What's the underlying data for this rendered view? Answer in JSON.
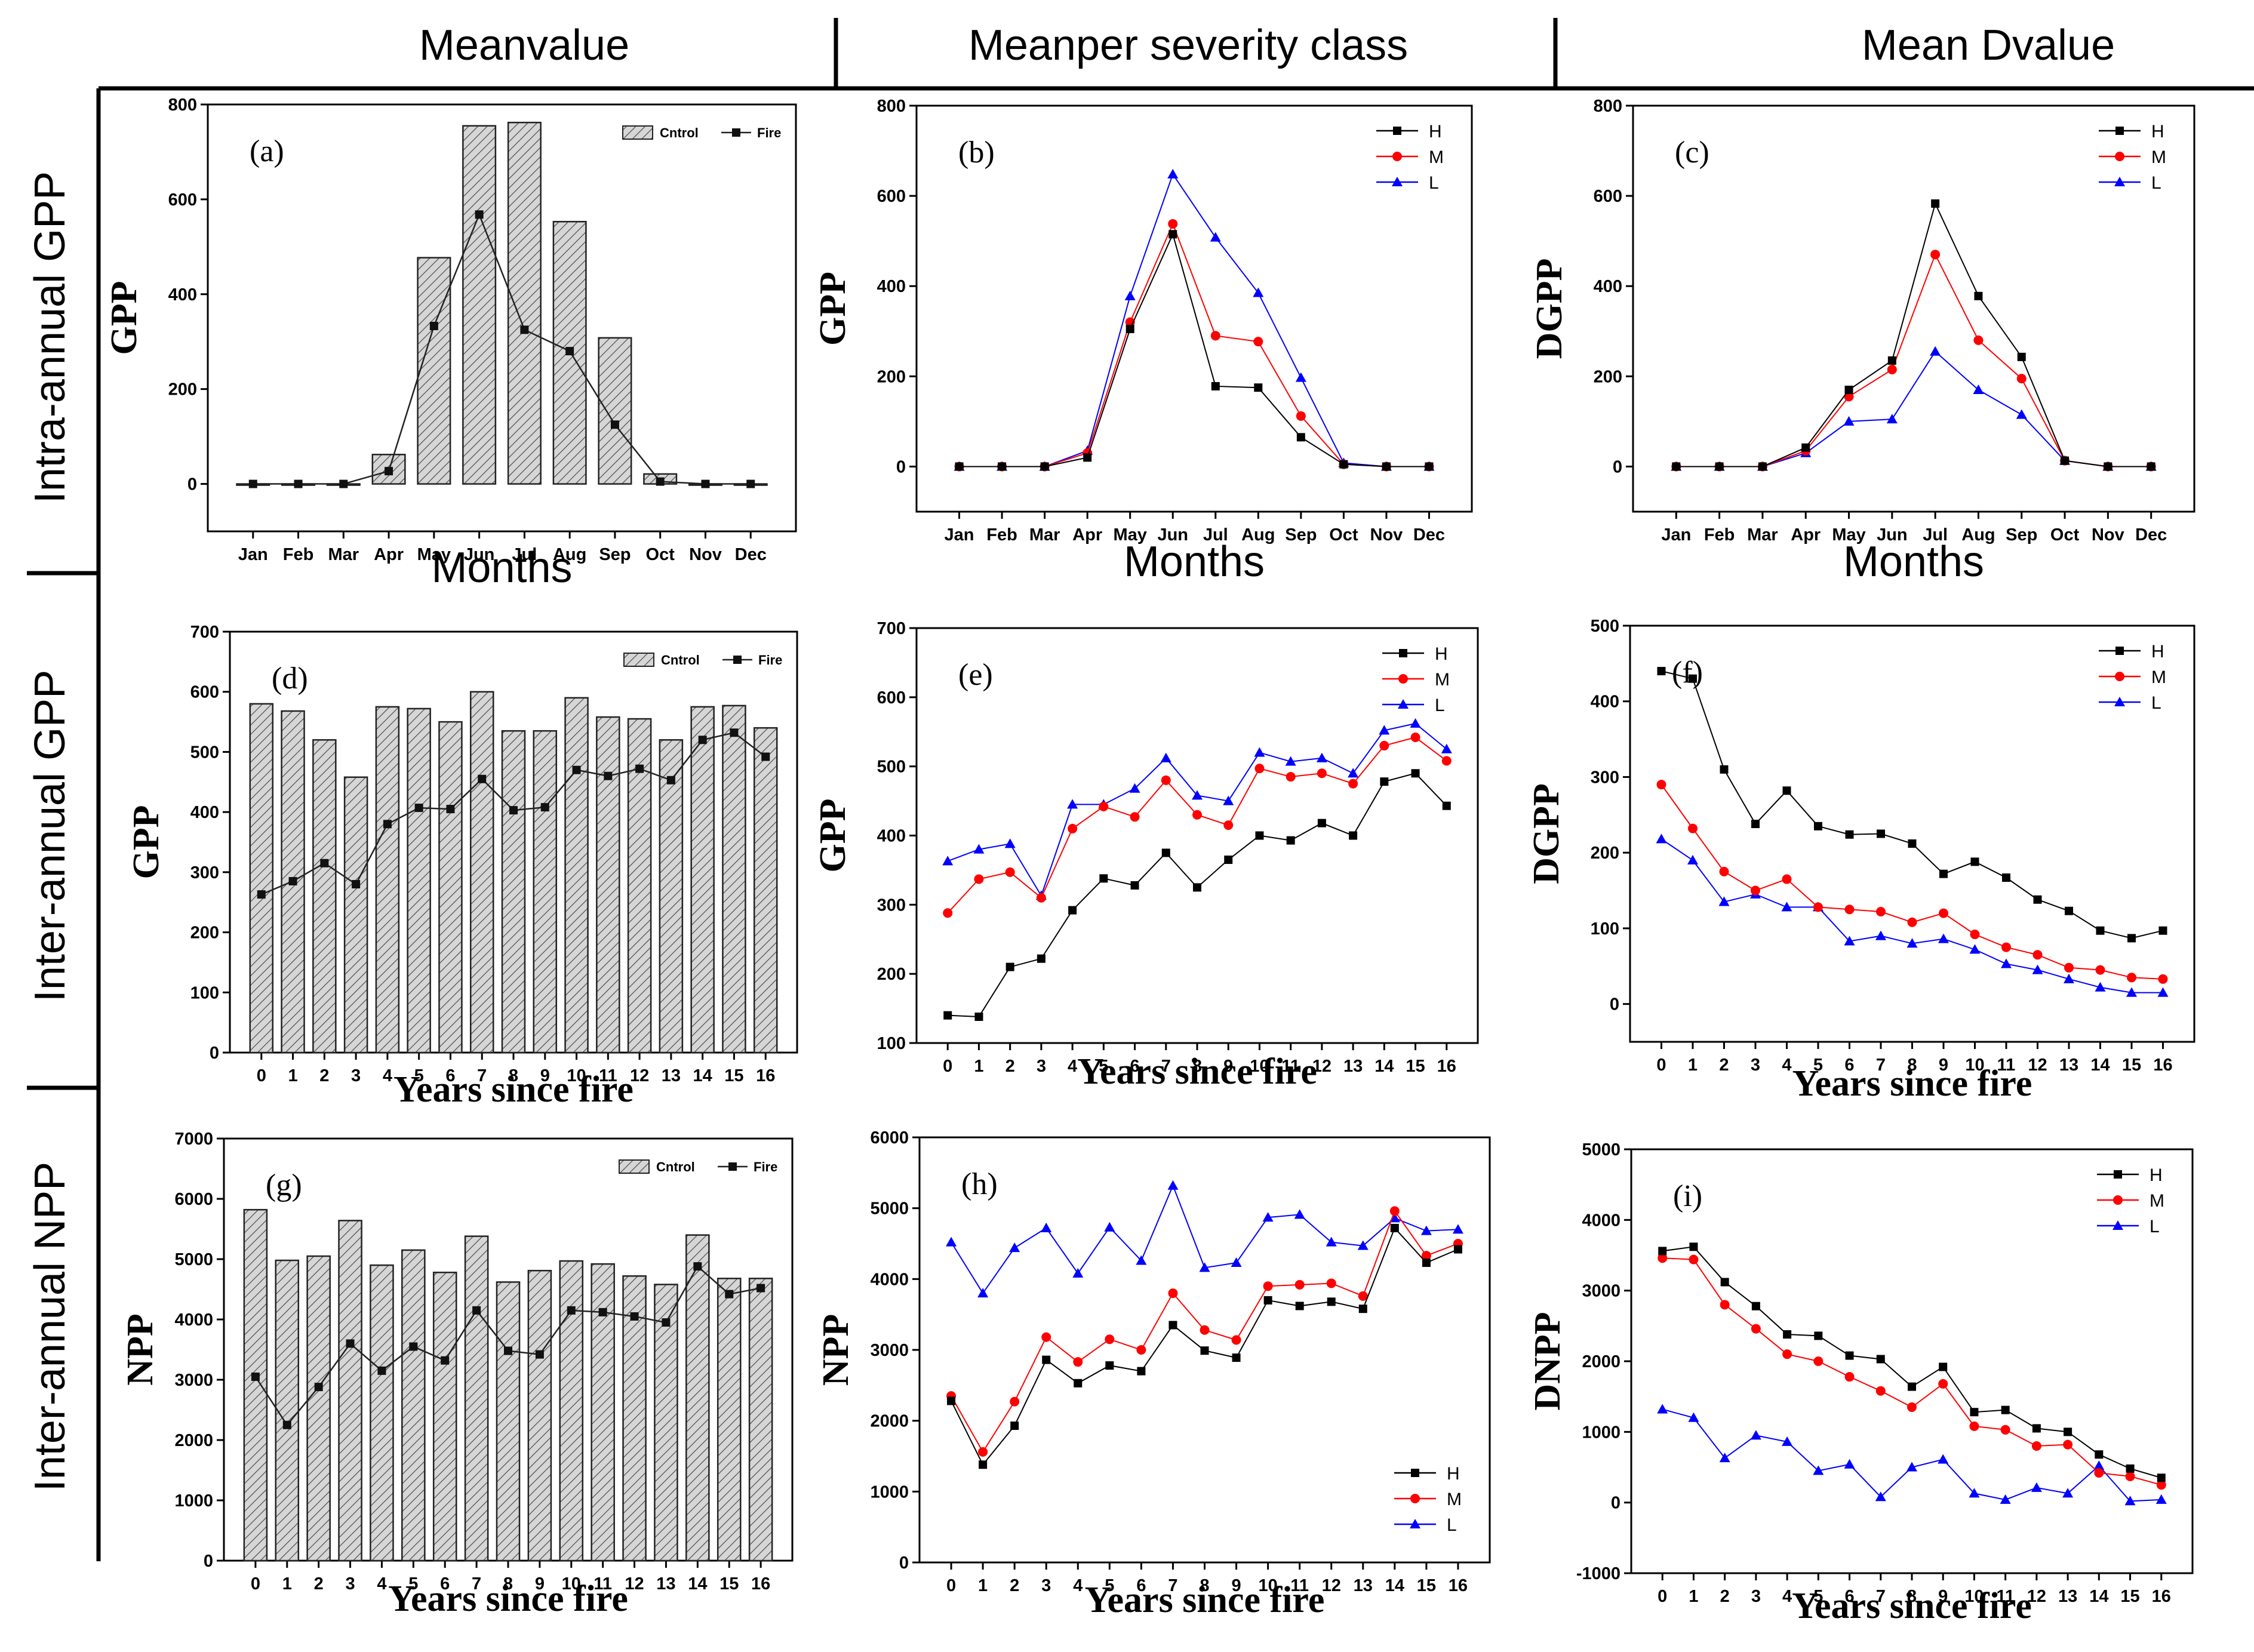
{
  "columns": [
    "Meanvalue",
    "Meanper severity class",
    "Mean Dvalue"
  ],
  "rows": [
    "Intra-annual GPP",
    "Inter-annual GPP",
    "Inter-annual NPP"
  ],
  "colors": {
    "H": "#000000",
    "M": "#ff0000",
    "L": "#0000ff",
    "bar_fill": "#d2d2d2",
    "axis": "#000000"
  },
  "chart_data": [
    {
      "id": "a",
      "type": "bar",
      "panel_label": "(a)",
      "ylabel": "GPP",
      "xlabel": "Months",
      "ylim": [
        -100,
        800
      ],
      "yticks": [
        0,
        200,
        400,
        600,
        800
      ],
      "categories": [
        "Jan",
        "Feb",
        "Mar",
        "Apr",
        "May",
        "Jun",
        "Jul",
        "Aug",
        "Sep",
        "Oct",
        "Nov",
        "Dec"
      ],
      "legend": [
        "Cntrol",
        "Fire"
      ],
      "series": [
        {
          "name": "Cntrol",
          "kind": "bar",
          "values": [
            0,
            0,
            0,
            62,
            477,
            755,
            762,
            553,
            308,
            21,
            0,
            0
          ]
        },
        {
          "name": "Fire",
          "kind": "line",
          "values": [
            0,
            0,
            0,
            27,
            333,
            568,
            325,
            280,
            125,
            5,
            0,
            0
          ]
        }
      ]
    },
    {
      "id": "b",
      "type": "line",
      "panel_label": "(b)",
      "ylabel": "GPP",
      "xlabel": "Months",
      "ylim": [
        -100,
        800
      ],
      "yticks": [
        0,
        200,
        400,
        600,
        800
      ],
      "categories": [
        "Jan",
        "Feb",
        "Mar",
        "Apr",
        "May",
        "Jun",
        "Jul",
        "Aug",
        "Sep",
        "Oct",
        "Nov",
        "Dec"
      ],
      "legend": [
        "H",
        "M",
        "L"
      ],
      "series": [
        {
          "name": "H",
          "values": [
            0,
            0,
            0,
            20,
            305,
            515,
            178,
            175,
            65,
            5,
            0,
            0
          ]
        },
        {
          "name": "M",
          "values": [
            0,
            0,
            0,
            30,
            320,
            538,
            290,
            277,
            112,
            5,
            0,
            0
          ]
        },
        {
          "name": "L",
          "values": [
            0,
            0,
            0,
            35,
            378,
            648,
            508,
            385,
            197,
            8,
            0,
            0
          ]
        }
      ]
    },
    {
      "id": "c",
      "type": "line",
      "panel_label": "(c)",
      "ylabel": "DGPP",
      "xlabel": "Months",
      "ylim": [
        -100,
        800
      ],
      "yticks": [
        0,
        200,
        400,
        600,
        800
      ],
      "categories": [
        "Jan",
        "Feb",
        "Mar",
        "Apr",
        "May",
        "Jun",
        "Jul",
        "Aug",
        "Sep",
        "Oct",
        "Nov",
        "Dec"
      ],
      "legend": [
        "H",
        "M",
        "L"
      ],
      "series": [
        {
          "name": "H",
          "values": [
            0,
            0,
            0,
            42,
            170,
            235,
            583,
            378,
            243,
            13,
            0,
            0
          ]
        },
        {
          "name": "M",
          "values": [
            0,
            0,
            0,
            35,
            155,
            215,
            470,
            280,
            195,
            13,
            0,
            0
          ]
        },
        {
          "name": "L",
          "values": [
            0,
            0,
            0,
            30,
            100,
            105,
            255,
            170,
            115,
            13,
            0,
            0
          ]
        }
      ]
    },
    {
      "id": "d",
      "type": "bar",
      "panel_label": "(d)",
      "ylabel": "GPP",
      "xlabel": "Years since fire",
      "ylim": [
        0,
        700
      ],
      "yticks": [
        0,
        100,
        200,
        300,
        400,
        500,
        600,
        700
      ],
      "categories": [
        "0",
        "1",
        "2",
        "3",
        "4",
        "5",
        "6",
        "7",
        "8",
        "9",
        "10",
        "11",
        "12",
        "13",
        "14",
        "15",
        "16"
      ],
      "legend": [
        "Cntrol",
        "Fire"
      ],
      "series": [
        {
          "name": "Cntrol",
          "kind": "bar",
          "values": [
            580,
            568,
            520,
            458,
            575,
            572,
            550,
            600,
            535,
            535,
            590,
            558,
            555,
            520,
            575,
            577,
            540
          ]
        },
        {
          "name": "Fire",
          "kind": "line",
          "values": [
            263,
            285,
            315,
            280,
            380,
            407,
            405,
            455,
            403,
            408,
            470,
            460,
            472,
            453,
            520,
            532,
            492
          ]
        }
      ]
    },
    {
      "id": "e",
      "type": "line",
      "panel_label": "(e)",
      "ylabel": "GPP",
      "xlabel": "Years since fire",
      "ylim": [
        100,
        700
      ],
      "yticks": [
        100,
        200,
        300,
        400,
        500,
        600,
        700
      ],
      "categories": [
        "0",
        "1",
        "2",
        "3",
        "4",
        "5",
        "6",
        "7",
        "8",
        "9",
        "10",
        "11",
        "12",
        "13",
        "14",
        "15",
        "16"
      ],
      "legend": [
        "H",
        "M",
        "L"
      ],
      "series": [
        {
          "name": "H",
          "values": [
            140,
            138,
            210,
            222,
            292,
            338,
            328,
            375,
            325,
            365,
            400,
            393,
            418,
            400,
            478,
            490,
            443
          ]
        },
        {
          "name": "M",
          "values": [
            288,
            337,
            347,
            310,
            410,
            442,
            427,
            480,
            430,
            415,
            497,
            485,
            490,
            475,
            530,
            542,
            508
          ]
        },
        {
          "name": "L",
          "values": [
            363,
            380,
            388,
            313,
            445,
            445,
            468,
            512,
            458,
            450,
            520,
            507,
            512,
            490,
            552,
            562,
            525
          ]
        }
      ]
    },
    {
      "id": "f",
      "type": "line",
      "panel_label": "(f)",
      "ylabel": "DGPP",
      "xlabel": "Years since fire",
      "ylim": [
        -50,
        500
      ],
      "yticks": [
        0,
        100,
        200,
        300,
        400,
        500
      ],
      "categories": [
        "0",
        "1",
        "2",
        "3",
        "4",
        "5",
        "6",
        "7",
        "8",
        "9",
        "10",
        "11",
        "12",
        "13",
        "14",
        "15",
        "16"
      ],
      "legend": [
        "H",
        "M",
        "L"
      ],
      "series": [
        {
          "name": "H",
          "values": [
            440,
            430,
            310,
            238,
            282,
            235,
            224,
            225,
            212,
            172,
            188,
            167,
            138,
            123,
            97,
            87,
            97
          ]
        },
        {
          "name": "M",
          "values": [
            290,
            232,
            175,
            150,
            165,
            128,
            125,
            122,
            108,
            120,
            92,
            75,
            65,
            48,
            45,
            35,
            33
          ]
        },
        {
          "name": "L",
          "values": [
            218,
            190,
            135,
            145,
            128,
            128,
            83,
            90,
            80,
            86,
            72,
            53,
            45,
            33,
            22,
            15,
            15
          ]
        }
      ]
    },
    {
      "id": "g",
      "type": "bar",
      "panel_label": "(g)",
      "ylabel": "NPP",
      "xlabel": "Years since fire",
      "ylim": [
        0,
        7000
      ],
      "yticks": [
        0,
        1000,
        2000,
        3000,
        4000,
        5000,
        6000,
        7000
      ],
      "categories": [
        "0",
        "1",
        "2",
        "3",
        "4",
        "5",
        "6",
        "7",
        "8",
        "9",
        "10",
        "11",
        "12",
        "13",
        "14",
        "15",
        "16"
      ],
      "legend": [
        "Cntrol",
        "Fire"
      ],
      "series": [
        {
          "name": "Cntrol",
          "kind": "bar",
          "values": [
            5820,
            4980,
            5050,
            5640,
            4900,
            5150,
            4780,
            5380,
            4620,
            4810,
            4970,
            4920,
            4720,
            4580,
            5400,
            4680,
            4680
          ]
        },
        {
          "name": "Fire",
          "kind": "line",
          "values": [
            3050,
            2250,
            2880,
            3600,
            3150,
            3550,
            3320,
            4150,
            3480,
            3420,
            4150,
            4120,
            4050,
            3950,
            4880,
            4420,
            4520
          ]
        }
      ]
    },
    {
      "id": "h",
      "type": "line",
      "panel_label": "(h)",
      "ylabel": "NPP",
      "xlabel": "Years since fire",
      "ylim": [
        0,
        6000
      ],
      "yticks": [
        0,
        1000,
        2000,
        3000,
        4000,
        5000,
        6000
      ],
      "categories": [
        "0",
        "1",
        "2",
        "3",
        "4",
        "5",
        "6",
        "7",
        "8",
        "9",
        "10",
        "11",
        "12",
        "13",
        "14",
        "15",
        "16"
      ],
      "legend": [
        "H",
        "M",
        "L"
      ],
      "series": [
        {
          "name": "H",
          "values": [
            2280,
            1380,
            1930,
            2860,
            2530,
            2780,
            2700,
            3350,
            2990,
            2890,
            3700,
            3620,
            3680,
            3580,
            4720,
            4230,
            4420
          ]
        },
        {
          "name": "M",
          "values": [
            2350,
            1560,
            2270,
            3180,
            2830,
            3150,
            3000,
            3800,
            3280,
            3140,
            3900,
            3920,
            3940,
            3760,
            4960,
            4330,
            4500
          ]
        },
        {
          "name": "L",
          "values": [
            4520,
            3800,
            4440,
            4720,
            4080,
            4730,
            4260,
            5320,
            4160,
            4230,
            4870,
            4910,
            4520,
            4470,
            4860,
            4680,
            4700
          ]
        }
      ]
    },
    {
      "id": "i",
      "type": "line",
      "panel_label": "(i)",
      "ylabel": "DNPP",
      "xlabel": "Years since fire",
      "ylim": [
        -1000,
        5000
      ],
      "yticks": [
        -1000,
        0,
        1000,
        2000,
        3000,
        4000,
        5000
      ],
      "categories": [
        "0",
        "1",
        "2",
        "3",
        "4",
        "5",
        "6",
        "7",
        "8",
        "9",
        "10",
        "11",
        "12",
        "13",
        "14",
        "15",
        "16"
      ],
      "legend": [
        "H",
        "M",
        "L"
      ],
      "series": [
        {
          "name": "H",
          "values": [
            3560,
            3620,
            3120,
            2780,
            2380,
            2360,
            2080,
            2030,
            1640,
            1920,
            1280,
            1310,
            1050,
            1000,
            680,
            480,
            350
          ]
        },
        {
          "name": "M",
          "values": [
            3460,
            3440,
            2800,
            2460,
            2100,
            2000,
            1780,
            1580,
            1350,
            1680,
            1080,
            1030,
            800,
            820,
            420,
            370,
            250
          ]
        },
        {
          "name": "L",
          "values": [
            1320,
            1200,
            630,
            950,
            860,
            450,
            540,
            80,
            500,
            610,
            130,
            40,
            210,
            130,
            520,
            20,
            40
          ]
        }
      ]
    }
  ]
}
